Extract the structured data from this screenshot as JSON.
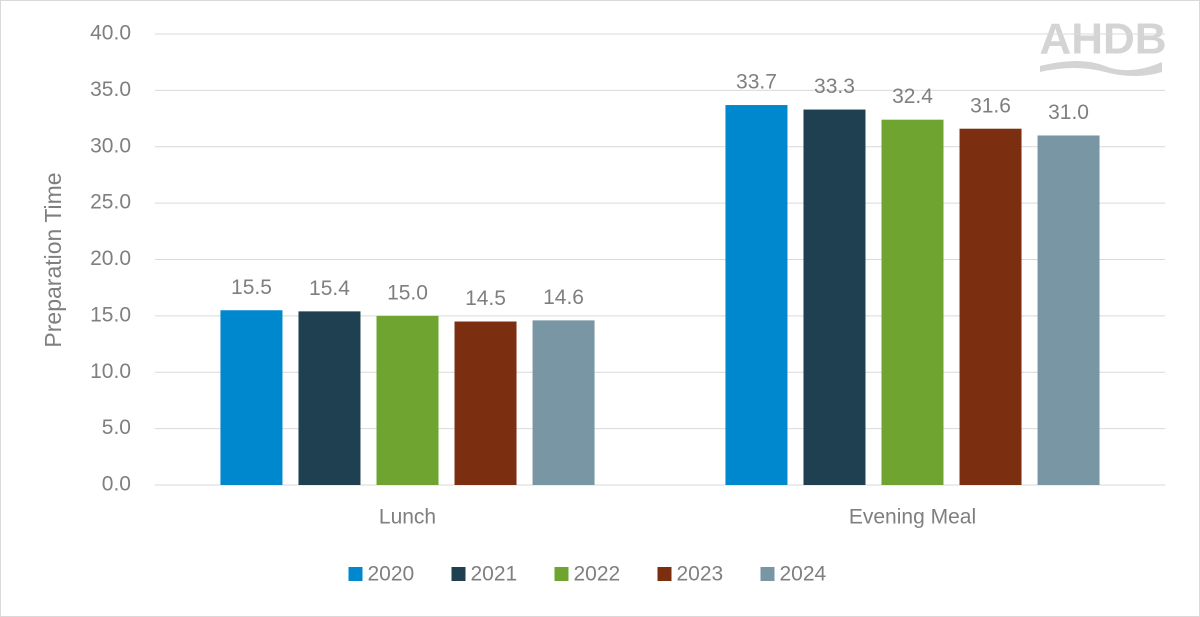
{
  "chart_data": {
    "type": "bar",
    "y_label": "Preparation Time",
    "watermark": "AHDB",
    "categories": [
      "Lunch",
      "Evening Meal"
    ],
    "series": [
      {
        "name": "2020",
        "color": "#0088cf",
        "values": [
          15.5,
          33.7
        ],
        "value_labels": [
          "15.5",
          "33.7"
        ]
      },
      {
        "name": "2021",
        "color": "#1f4050",
        "values": [
          15.4,
          33.3
        ],
        "value_labels": [
          "15.4",
          "33.3"
        ]
      },
      {
        "name": "2022",
        "color": "#6ea42f",
        "values": [
          15.0,
          32.4
        ],
        "value_labels": [
          "15.0",
          "32.4"
        ]
      },
      {
        "name": "2023",
        "color": "#7c2e11",
        "values": [
          14.5,
          31.6
        ],
        "value_labels": [
          "14.5",
          "31.6"
        ]
      },
      {
        "name": "2024",
        "color": "#7896a3",
        "values": [
          14.6,
          31.0
        ],
        "value_labels": [
          "14.6",
          "31.0"
        ]
      }
    ],
    "ylim": [
      0,
      40
    ],
    "yticks": [
      {
        "value": 0,
        "label": "0.0"
      },
      {
        "value": 5,
        "label": "5.0"
      },
      {
        "value": 10,
        "label": "10.0"
      },
      {
        "value": 15,
        "label": "15.0"
      },
      {
        "value": 20,
        "label": "20.0"
      },
      {
        "value": 25,
        "label": "25.0"
      },
      {
        "value": 30,
        "label": "30.0"
      },
      {
        "value": 35,
        "label": "35.0"
      },
      {
        "value": 40,
        "label": "40.0"
      }
    ],
    "grid": true,
    "legend": "bottom"
  }
}
